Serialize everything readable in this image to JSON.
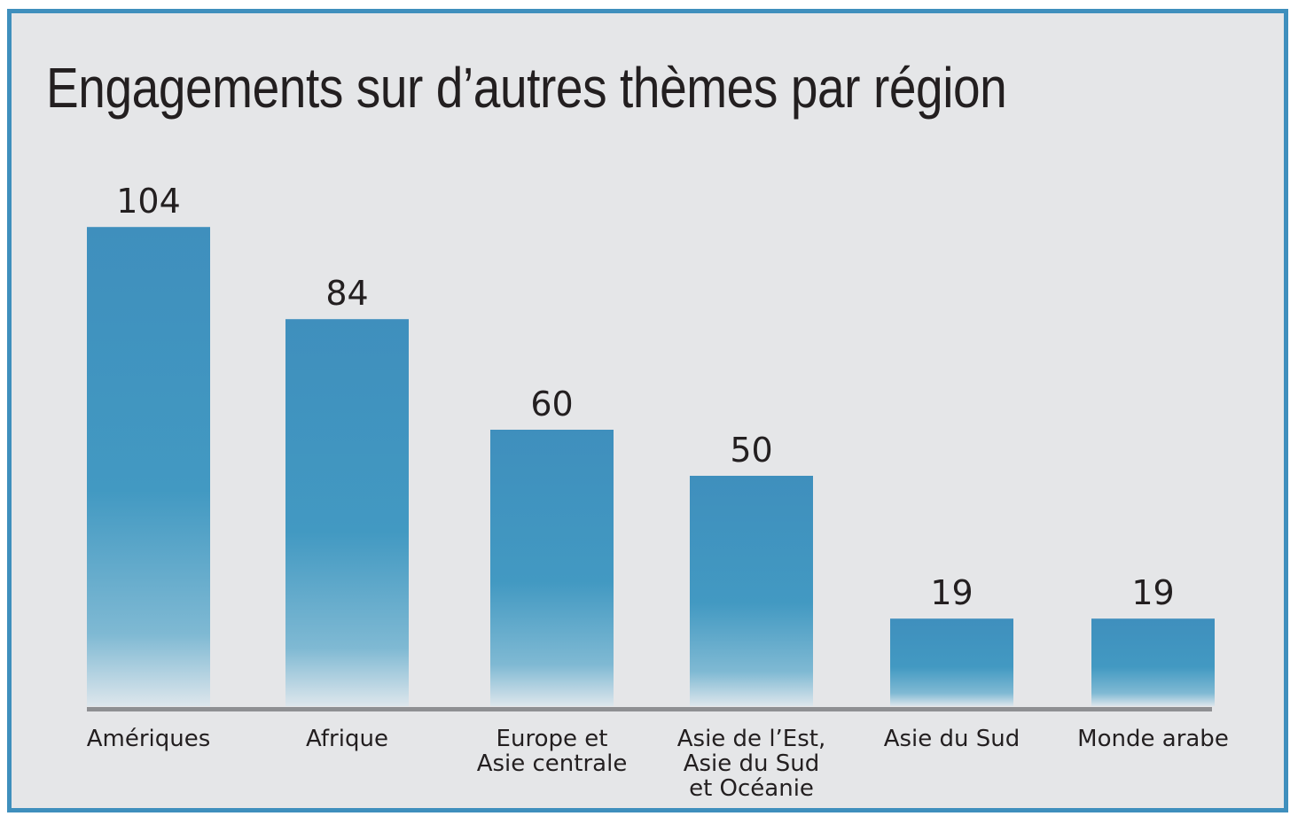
{
  "chart_data": {
    "type": "bar",
    "title": "Engagements sur d’autres thèmes par région",
    "categories": [
      [
        "Amériques"
      ],
      [
        "Afrique"
      ],
      [
        "Europe et",
        "Asie centrale"
      ],
      [
        "Asie de l’Est,",
        "Asie du Sud",
        "et Océanie"
      ],
      [
        "Asie du Sud"
      ],
      [
        "Monde arabe"
      ]
    ],
    "values": [
      104,
      84,
      60,
      50,
      19,
      19
    ],
    "ylim": [
      0,
      110
    ],
    "grid": false,
    "data_labels": true,
    "colors": {
      "bar": "#3f8fbd",
      "bar_fade": "#dde6ec",
      "axis": "#8e8f92",
      "frame": "#3f8fbd",
      "background": "#e5e6e8"
    }
  }
}
